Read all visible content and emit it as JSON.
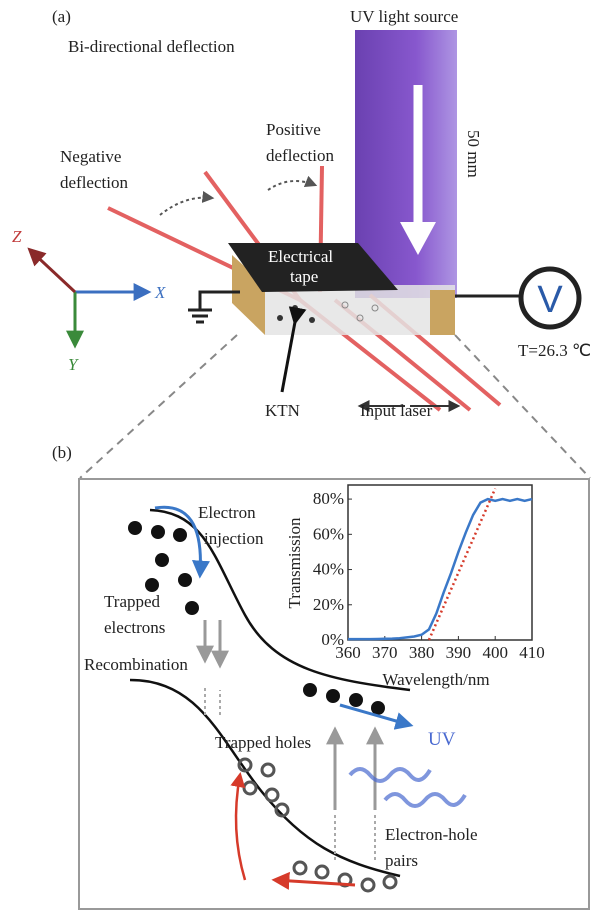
{
  "panel_a": {
    "label": "(a)",
    "title": "Bi-directional deflection",
    "uv_source": "UV light source",
    "length": "50 mm",
    "negative_deflection": [
      "Negative",
      "deflection"
    ],
    "positive_deflection": [
      "Positive",
      "deflection"
    ],
    "tape": [
      "Electrical",
      "tape"
    ],
    "axes": {
      "x": "X",
      "y": "Y",
      "z": "Z"
    },
    "voltmeter": "V",
    "temperature": "T=26.3 ℃",
    "crystal": "KTN",
    "input_laser": "Input laser"
  },
  "panel_b": {
    "label": "(b)",
    "electron_injection": [
      "Electron",
      "injection"
    ],
    "trapped_electrons": [
      "Trapped",
      "electrons"
    ],
    "recombination": "Recombination",
    "trapped_holes": "Trapped holes",
    "uv": "UV",
    "electron_hole_pairs": [
      "Electron-hole",
      "pairs"
    ],
    "inset": {
      "type": "line",
      "xlabel": "Wavelength/nm",
      "ylabel": "Transmission",
      "xlim": [
        360,
        410
      ],
      "ylim": [
        0,
        88
      ],
      "xticks": [
        360,
        370,
        380,
        390,
        400,
        410
      ],
      "yticks": [
        {
          "value": 0,
          "label": "0%"
        },
        {
          "value": 20,
          "label": "20%"
        },
        {
          "value": 40,
          "label": "40%"
        },
        {
          "value": 60,
          "label": "60%"
        },
        {
          "value": 80,
          "label": "80%"
        }
      ],
      "series": [
        {
          "color": "#3a78c8",
          "x": [
            360,
            362,
            364,
            366,
            368,
            370,
            372,
            374,
            376,
            378,
            380,
            382,
            384,
            386,
            388,
            390,
            392,
            394,
            396,
            398,
            400,
            402,
            404,
            406,
            408,
            410
          ],
          "values": [
            0.5,
            0.5,
            0.5,
            0.5,
            0.6,
            0.7,
            0.8,
            1,
            1.5,
            2,
            3,
            6,
            15,
            27,
            38,
            50,
            61,
            71,
            78,
            80,
            79,
            80,
            79,
            80,
            79,
            80
          ]
        },
        {
          "color": "#d63a2a",
          "x": [
            382,
            400
          ],
          "values": [
            0,
            86
          ]
        }
      ]
    }
  }
}
